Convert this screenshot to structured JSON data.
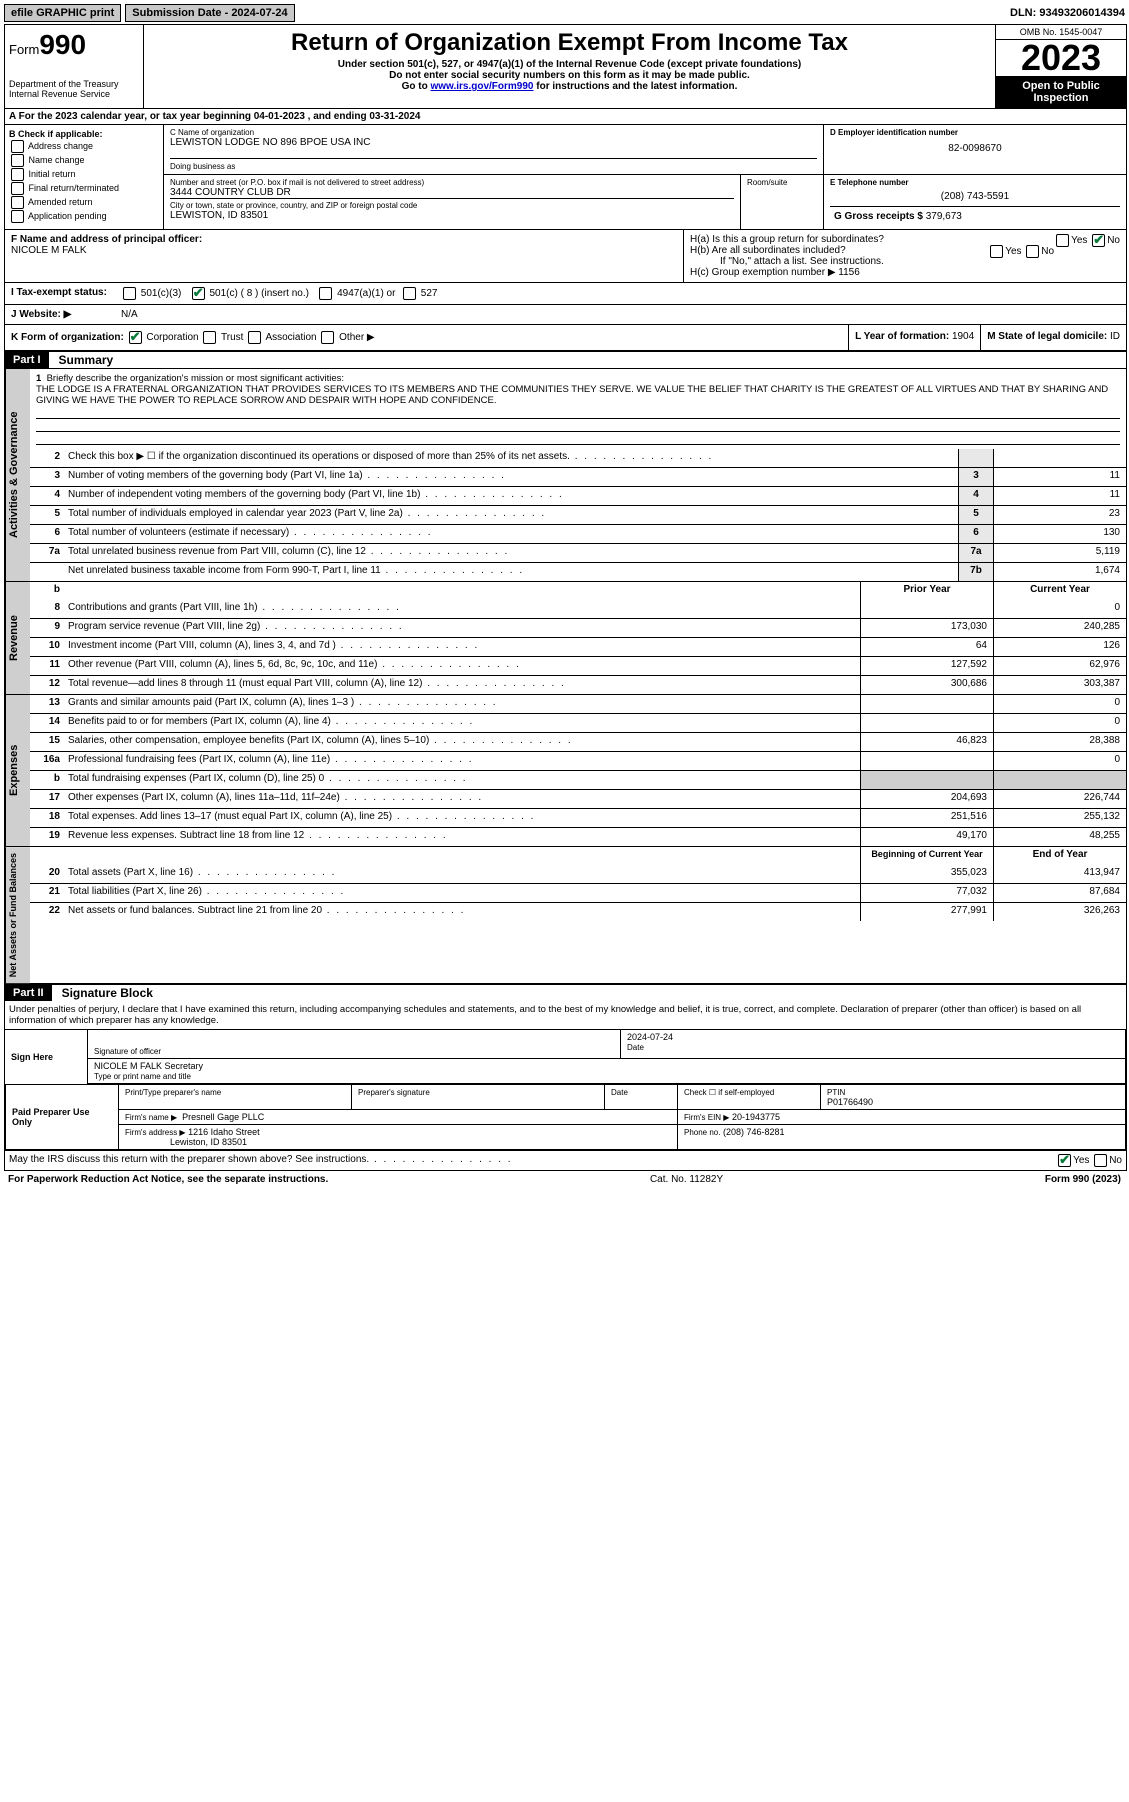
{
  "topbar": {
    "efile": "efile GRAPHIC print",
    "submission_label": "Submission Date - 2024-07-24",
    "dln": "DLN: 93493206014394"
  },
  "header": {
    "form_label": "Form",
    "form_num": "990",
    "title": "Return of Organization Exempt From Income Tax",
    "subtitle": "Under section 501(c), 527, or 4947(a)(1) of the Internal Revenue Code (except private foundations)",
    "ssn_warn": "Do not enter social security numbers on this form as it may be made public.",
    "goto": "Go to ",
    "goto_link": "www.irs.gov/Form990",
    "goto_rest": " for instructions and the latest information.",
    "dept": "Department of the Treasury Internal Revenue Service",
    "omb": "OMB No. 1545-0047",
    "year": "2023",
    "openpub": "Open to Public Inspection"
  },
  "rowA": "For the 2023 calendar year, or tax year beginning 04-01-2023   , and ending 03-31-2024",
  "colB": {
    "label": "B Check if applicable:",
    "opts": [
      "Address change",
      "Name change",
      "Initial return",
      "Final return/terminated",
      "Amended return",
      "Application pending"
    ]
  },
  "blockC": {
    "name_label": "C Name of organization",
    "name": "LEWISTON LODGE NO 896 BPOE USA INC",
    "dba_label": "Doing business as",
    "addr_label": "Number and street (or P.O. box if mail is not delivered to street address)",
    "room_label": "Room/suite",
    "addr": "3444 COUNTRY CLUB DR",
    "city_label": "City or town, state or province, country, and ZIP or foreign postal code",
    "city": "LEWISTON, ID  83501"
  },
  "blockD": {
    "label": "D Employer identification number",
    "val": "82-0098670"
  },
  "blockE": {
    "label": "E Telephone number",
    "val": "(208) 743-5591"
  },
  "blockG": {
    "label": "G Gross receipts $",
    "val": "379,673"
  },
  "blockF": {
    "label": "F Name and address of principal officer:",
    "name": "NICOLE M FALK"
  },
  "blockH": {
    "ha": "H(a)  Is this a group return for subordinates?",
    "hb": "H(b)  Are all subordinates included?",
    "hb_note": "If \"No,\" attach a list. See instructions.",
    "hc": "H(c)  Group exemption number ▶  1156",
    "yes": "Yes",
    "no": "No"
  },
  "rowI": {
    "label": "I   Tax-exempt status:",
    "c3": "501(c)(3)",
    "c_insert": "501(c) ( 8 ) (insert no.)",
    "a1": "4947(a)(1) or",
    "s527": "527"
  },
  "rowJ": {
    "label": "J   Website: ▶",
    "val": "N/A"
  },
  "rowK": {
    "label": "K Form of organization:",
    "corp": "Corporation",
    "trust": "Trust",
    "assoc": "Association",
    "other": "Other ▶"
  },
  "rowL": {
    "label": "L Year of formation:",
    "val": "1904"
  },
  "rowM": {
    "label": "M State of legal domicile:",
    "val": "ID"
  },
  "part1": {
    "num": "Part I",
    "title": "Summary"
  },
  "mission": {
    "label": "Briefly describe the organization's mission or most significant activities:",
    "text": "THE LODGE IS A FRATERNAL ORGANIZATION THAT PROVIDES SERVICES TO ITS MEMBERS AND THE COMMUNITIES THEY SERVE. WE VALUE THE BELIEF THAT CHARITY IS THE GREATEST OF ALL VIRTUES AND THAT BY SHARING AND GIVING WE HAVE THE POWER TO REPLACE SORROW AND DESPAIR WITH HOPE AND CONFIDENCE."
  },
  "gov_lines": [
    {
      "n": "2",
      "t": "Check this box ▶ ☐ if the organization discontinued its operations or disposed of more than 25% of its net assets.",
      "box": "",
      "v": ""
    },
    {
      "n": "3",
      "t": "Number of voting members of the governing body (Part VI, line 1a)",
      "box": "3",
      "v": "11"
    },
    {
      "n": "4",
      "t": "Number of independent voting members of the governing body (Part VI, line 1b)",
      "box": "4",
      "v": "11"
    },
    {
      "n": "5",
      "t": "Total number of individuals employed in calendar year 2023 (Part V, line 2a)",
      "box": "5",
      "v": "23"
    },
    {
      "n": "6",
      "t": "Total number of volunteers (estimate if necessary)",
      "box": "6",
      "v": "130"
    },
    {
      "n": "7a",
      "t": "Total unrelated business revenue from Part VIII, column (C), line 12",
      "box": "7a",
      "v": "5,119"
    },
    {
      "n": "",
      "t": "Net unrelated business taxable income from Form 990-T, Part I, line 11",
      "box": "7b",
      "v": "1,674"
    }
  ],
  "twocol_hdr": {
    "b": "b",
    "prior": "Prior Year",
    "curr": "Current Year"
  },
  "rev_lines": [
    {
      "n": "8",
      "t": "Contributions and grants (Part VIII, line 1h)",
      "p": "",
      "c": "0"
    },
    {
      "n": "9",
      "t": "Program service revenue (Part VIII, line 2g)",
      "p": "173,030",
      "c": "240,285"
    },
    {
      "n": "10",
      "t": "Investment income (Part VIII, column (A), lines 3, 4, and 7d )",
      "p": "64",
      "c": "126"
    },
    {
      "n": "11",
      "t": "Other revenue (Part VIII, column (A), lines 5, 6d, 8c, 9c, 10c, and 11e)",
      "p": "127,592",
      "c": "62,976"
    },
    {
      "n": "12",
      "t": "Total revenue—add lines 8 through 11 (must equal Part VIII, column (A), line 12)",
      "p": "300,686",
      "c": "303,387"
    }
  ],
  "exp_lines": [
    {
      "n": "13",
      "t": "Grants and similar amounts paid (Part IX, column (A), lines 1–3 )",
      "p": "",
      "c": "0"
    },
    {
      "n": "14",
      "t": "Benefits paid to or for members (Part IX, column (A), line 4)",
      "p": "",
      "c": "0"
    },
    {
      "n": "15",
      "t": "Salaries, other compensation, employee benefits (Part IX, column (A), lines 5–10)",
      "p": "46,823",
      "c": "28,388"
    },
    {
      "n": "16a",
      "t": "Professional fundraising fees (Part IX, column (A), line 11e)",
      "p": "",
      "c": "0"
    },
    {
      "n": "b",
      "t": "Total fundraising expenses (Part IX, column (D), line 25) 0",
      "p": "gray",
      "c": "gray"
    },
    {
      "n": "17",
      "t": "Other expenses (Part IX, column (A), lines 11a–11d, 11f–24e)",
      "p": "204,693",
      "c": "226,744"
    },
    {
      "n": "18",
      "t": "Total expenses. Add lines 13–17 (must equal Part IX, column (A), line 25)",
      "p": "251,516",
      "c": "255,132"
    },
    {
      "n": "19",
      "t": "Revenue less expenses. Subtract line 18 from line 12",
      "p": "49,170",
      "c": "48,255"
    }
  ],
  "net_hdr": {
    "beg": "Beginning of Current Year",
    "end": "End of Year"
  },
  "net_lines": [
    {
      "n": "20",
      "t": "Total assets (Part X, line 16)",
      "p": "355,023",
      "c": "413,947"
    },
    {
      "n": "21",
      "t": "Total liabilities (Part X, line 26)",
      "p": "77,032",
      "c": "87,684"
    },
    {
      "n": "22",
      "t": "Net assets or fund balances. Subtract line 21 from line 20",
      "p": "277,991",
      "c": "326,263"
    }
  ],
  "part2": {
    "num": "Part II",
    "title": "Signature Block"
  },
  "sig_text": "Under penalties of perjury, I declare that I have examined this return, including accompanying schedules and statements, and to the best of my knowledge and belief, it is true, correct, and complete. Declaration of preparer (other than officer) is based on all information of which preparer has any knowledge.",
  "sign": {
    "here": "Sign Here",
    "sig_label": "Signature of officer",
    "name": "NICOLE M FALK Secretary",
    "name_label": "Type or print name and title",
    "date_label": "Date",
    "date": "2024-07-24"
  },
  "paid": {
    "label": "Paid Preparer Use Only",
    "prep_name_label": "Print/Type preparer's name",
    "prep_sig_label": "Preparer's signature",
    "date_label": "Date",
    "check_label": "Check ☐ if self-employed",
    "ptin_label": "PTIN",
    "ptin": "P01766490",
    "firm_name_label": "Firm's name ▶",
    "firm_name": "Presnell Gage PLLC",
    "firm_ein_label": "Firm's EIN ▶",
    "firm_ein": "20-1943775",
    "firm_addr_label": "Firm's address ▶",
    "firm_addr1": "1216 Idaho Street",
    "firm_addr2": "Lewiston, ID  83501",
    "phone_label": "Phone no.",
    "phone": "(208) 746-8281"
  },
  "discuss": "May the IRS discuss this return with the preparer shown above? See instructions.",
  "bottom": {
    "pra": "For Paperwork Reduction Act Notice, see the separate instructions.",
    "cat": "Cat. No. 11282Y",
    "form": "Form 990 (2023)"
  },
  "side_labels": {
    "gov": "Activities & Governance",
    "rev": "Revenue",
    "exp": "Expenses",
    "net": "Net Assets or Fund Balances"
  }
}
